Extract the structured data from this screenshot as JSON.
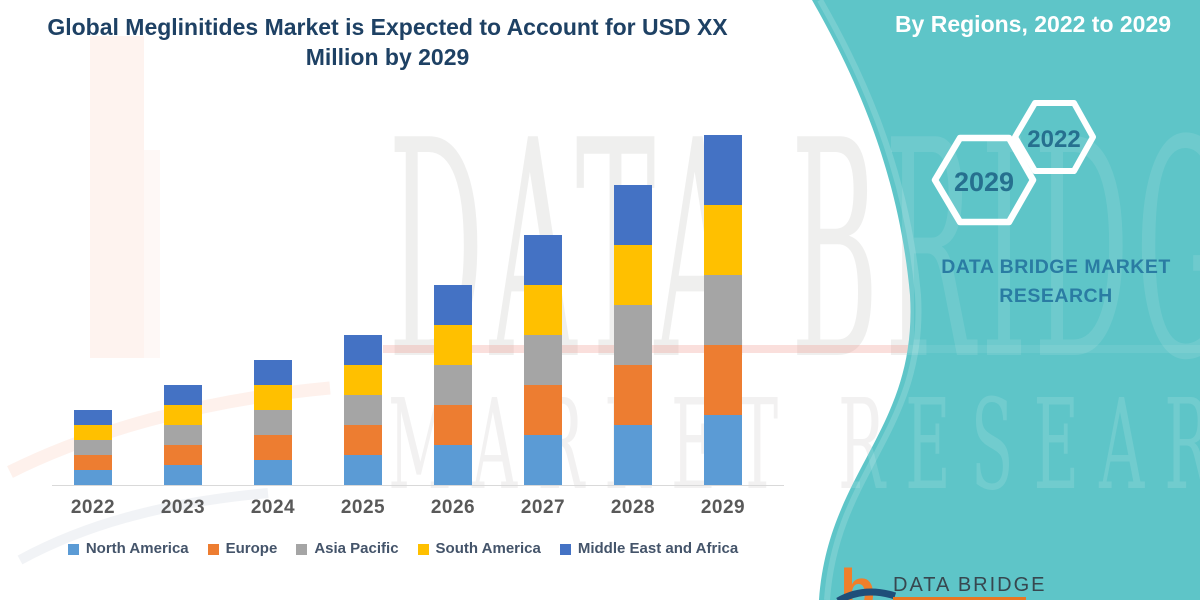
{
  "title": {
    "line1": "Global Meglinitides Market is Expected to Account for USD XX",
    "line2": "Million by 2029"
  },
  "sidebar": {
    "heading": "By Regions, 2022 to 2029",
    "hex_small_year": "2022",
    "hex_large_year": "2029",
    "brand_line1": "DATA BRIDGE MARKET",
    "brand_line2": "RESEARCH",
    "background_color": "#5ec5c8",
    "brand_text_color": "#2a7ca3",
    "hex_year_color": "#26708f"
  },
  "footer_logo": {
    "glyph": "b",
    "brand": "DATA BRIDGE",
    "brand_color": "#37474f",
    "glyph_color": "#f07f2a",
    "underline_color": "#e87722"
  },
  "watermarks": {
    "big_text": "DATA BRIDGE",
    "sub_text": "MARKET RESEARCH"
  },
  "chart_data": {
    "type": "bar",
    "stacked": true,
    "title": "Global Meglinitides Market is Expected to Account for USD XX Million by 2029",
    "xlabel": "",
    "ylabel": "",
    "y_axis_visible": false,
    "gridlines": false,
    "legend_position": "bottom",
    "value_note": "values undisclosed (USD XX Million); series values are relative heights read from bar pixels, equal split across regions each year",
    "categories": [
      "2022",
      "2023",
      "2024",
      "2025",
      "2026",
      "2027",
      "2028",
      "2029"
    ],
    "series": [
      {
        "name": "North America",
        "color": "#5b9bd5",
        "values": [
          15,
          20,
          25,
          30,
          40,
          50,
          60,
          70
        ]
      },
      {
        "name": "Europe",
        "color": "#ed7d31",
        "values": [
          15,
          20,
          25,
          30,
          40,
          50,
          60,
          70
        ]
      },
      {
        "name": "Asia Pacific",
        "color": "#a5a5a5",
        "values": [
          15,
          20,
          25,
          30,
          40,
          50,
          60,
          70
        ]
      },
      {
        "name": "South America",
        "color": "#ffc000",
        "values": [
          15,
          20,
          25,
          30,
          40,
          50,
          60,
          70
        ]
      },
      {
        "name": "Middle East and Africa",
        "color": "#4472c4",
        "values": [
          15,
          20,
          25,
          30,
          40,
          50,
          60,
          70
        ]
      }
    ],
    "totals": [
      75,
      100,
      125,
      150,
      200,
      250,
      300,
      350
    ]
  }
}
